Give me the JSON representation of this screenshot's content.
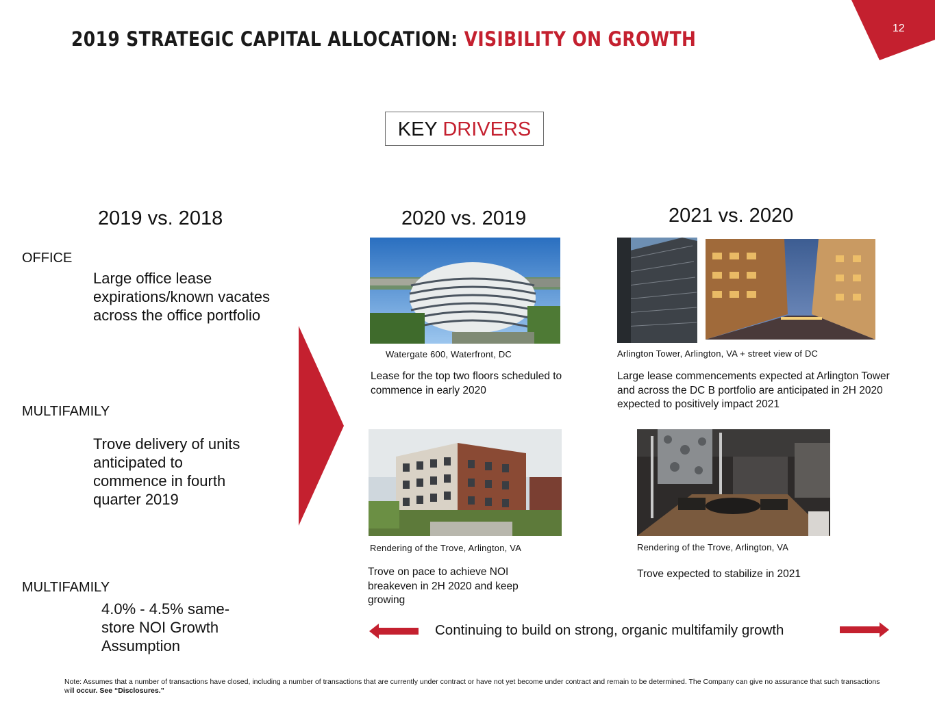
{
  "header": {
    "title_main": "2019 STRATEGIC CAPITAL ALLOCATION: ",
    "title_accent": "VISIBILITY ON GROWTH",
    "page_number": "12",
    "accent_color": "#c4202f"
  },
  "key_drivers": {
    "word1": "KEY",
    "word2": "DRIVERS"
  },
  "columns": [
    "2019 vs. 2018",
    "2020 vs. 2019",
    "2021 vs. 2020"
  ],
  "office": {
    "label": "OFFICE",
    "driver": "Large office lease expirations/known vacates across the office portfolio",
    "watergate_caption": "Watergate 600, Waterfront, DC",
    "watergate_text": "Lease for the top two floors scheduled to commence in early 2020",
    "arlington_caption": "Arlington Tower, Arlington, VA + street view of DC",
    "arlington_text": "Large lease commencements expected at Arlington Tower and across the DC B portfolio are anticipated in 2H 2020 expected to positively impact 2021"
  },
  "multifamily_1": {
    "label": "MULTIFAMILY",
    "driver": "Trove delivery of units anticipated to commence in fourth quarter 2019",
    "trove_caption_1": "Rendering of the Trove, Arlington, VA",
    "trove_text_1": "Trove on pace to achieve NOI breakeven in 2H 2020 and keep growing",
    "trove_caption_2": "Rendering of the Trove, Arlington, VA",
    "trove_text_2": "Trove expected to stabilize in 2021"
  },
  "multifamily_2": {
    "label": "MULTIFAMILY",
    "driver": "4.0% - 4.5% same-store NOI Growth Assumption",
    "continuing": "Continuing to build on strong, organic multifamily growth"
  },
  "note": {
    "text": "Note: Assumes that a number of transactions have closed, including a number of transactions that are currently under contract or have not yet become under contract and remain to be determined. The Company can give no assurance that such transactions will ",
    "bold": "occur. See “Disclosures.”"
  },
  "icons": [
    "page-corner-triangle",
    "big-arrow-right",
    "arrow-left-icon",
    "arrow-right-icon"
  ]
}
